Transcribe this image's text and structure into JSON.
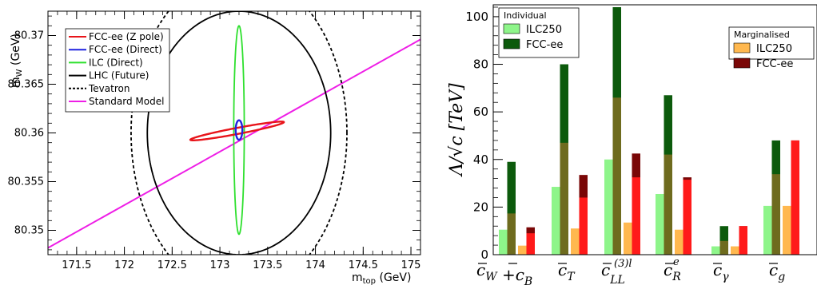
{
  "chart_data": [
    {
      "type": "contour",
      "xlabel_main": "m",
      "xlabel_sub": "top",
      "xlabel_unit": " (GeV)",
      "ylabel_main": "m",
      "ylabel_sub": "W",
      "ylabel_unit": " (GeV)",
      "xlim": [
        171.2,
        175.1
      ],
      "ylim": [
        80.3475,
        80.3725
      ],
      "xticks": [
        "171.5",
        "172",
        "172.5",
        "173",
        "173.5",
        "174",
        "174.5",
        "175"
      ],
      "xtick_values": [
        171.5,
        172,
        172.5,
        173,
        173.5,
        174,
        174.5,
        175
      ],
      "yticks": [
        "80.35",
        "80.355",
        "80.36",
        "80.365",
        "80.37"
      ],
      "ytick_values": [
        80.35,
        80.355,
        80.36,
        80.365,
        80.37
      ],
      "legend": [
        {
          "label": "FCC-ee (Z pole)",
          "color": "#e8141a",
          "style": "solid"
        },
        {
          "label": "FCC-ee (Direct)",
          "color": "#1f22e0",
          "style": "solid"
        },
        {
          "label": "ILC (Direct)",
          "color": "#2ee02e",
          "style": "solid"
        },
        {
          "label": "LHC (Future)",
          "color": "#000000",
          "style": "solid"
        },
        {
          "label": "Tevatron",
          "color": "#000000",
          "style": "dashed"
        },
        {
          "label": "Standard Model",
          "color": "#ee1ee6",
          "style": "solid"
        }
      ],
      "ellipses": [
        {
          "name": "Tevatron",
          "cx": 173.2,
          "cy": 80.36,
          "rx": 1.13,
          "ry": 0.0165,
          "tilt": 0,
          "color": "#000000",
          "dashed": true
        },
        {
          "name": "LHC (Future)",
          "cx": 173.2,
          "cy": 80.36,
          "rx": 0.96,
          "ry": 0.0125,
          "tilt": 0,
          "color": "#000000",
          "dashed": false
        },
        {
          "name": "ILC (Direct)",
          "cx": 173.2,
          "cy": 80.3603,
          "rx": 0.055,
          "ry": 0.0107,
          "tilt": 0,
          "color": "#2ee02e",
          "dashed": false
        },
        {
          "name": "FCC-ee (Z pole)",
          "cx": 173.18,
          "cy": 80.3602,
          "rx": 0.49,
          "ry": 0.00032,
          "tilt": 0.00185,
          "color": "#e8141a",
          "dashed": false
        },
        {
          "name": "FCC-ee (Direct)",
          "cx": 173.2,
          "cy": 80.3603,
          "rx": 0.035,
          "ry": 0.001,
          "tilt": 0,
          "color": "#1f22e0",
          "dashed": false
        }
      ],
      "sm_line": {
        "name": "Standard Model",
        "x": [
          171.2,
          175.1
        ],
        "y": [
          80.3482,
          80.3696
        ],
        "color": "#ee1ee6"
      }
    },
    {
      "type": "bar",
      "ylim": [
        0,
        105
      ],
      "yticks": [
        "0",
        "20",
        "40",
        "60",
        "80",
        "100"
      ],
      "ytick_values": [
        0,
        20,
        40,
        60,
        80,
        100
      ],
      "ylabel": "Λ/√c [TeV]",
      "categories": [
        "c̄W + c̄B",
        "c̄T",
        "c̄LL(3)l",
        "c̄eR",
        "c̄γ",
        "c̄g"
      ],
      "legend_left_title": "Individual",
      "legend_right_title": "Marginalised",
      "legend_left": [
        {
          "label": "ILC250",
          "color": "#8ef58a"
        },
        {
          "label": "FCC-ee",
          "color": "#0c5a0c"
        }
      ],
      "legend_right": [
        {
          "label": "ILC250",
          "color": "#ffb84f"
        },
        {
          "label": "FCC-ee",
          "color": "#7a0707"
        }
      ],
      "groups": [
        {
          "category": "cW+cB",
          "individual_ilc": 10.5,
          "individual_fcc": 39,
          "marg_ilc": 3.8,
          "marg_fcc": 11.5,
          "marg_fcc_overlap": 9
        },
        {
          "category": "cT",
          "individual_ilc": 28.5,
          "individual_fcc": 80,
          "marg_ilc": 11,
          "marg_fcc": 33.5,
          "marg_fcc_overlap": 24
        },
        {
          "category": "cLL3l",
          "individual_ilc": 40,
          "individual_fcc": 104,
          "marg_ilc": 13.5,
          "marg_fcc": 42.5,
          "marg_fcc_overlap": 32.5
        },
        {
          "category": "cR",
          "individual_ilc": 25.5,
          "individual_fcc": 67,
          "marg_ilc": 10.5,
          "marg_fcc": 32.5,
          "marg_fcc_overlap": 31.5
        },
        {
          "category": "cgamma",
          "individual_ilc": 3.5,
          "individual_fcc": 12,
          "marg_ilc": 3.5,
          "marg_fcc": 12,
          "marg_fcc_overlap": 12
        },
        {
          "category": "cg",
          "individual_ilc": 20.5,
          "individual_fcc": 48,
          "marg_ilc": 20.5,
          "marg_fcc": 48,
          "marg_fcc_overlap": 48
        }
      ]
    }
  ]
}
